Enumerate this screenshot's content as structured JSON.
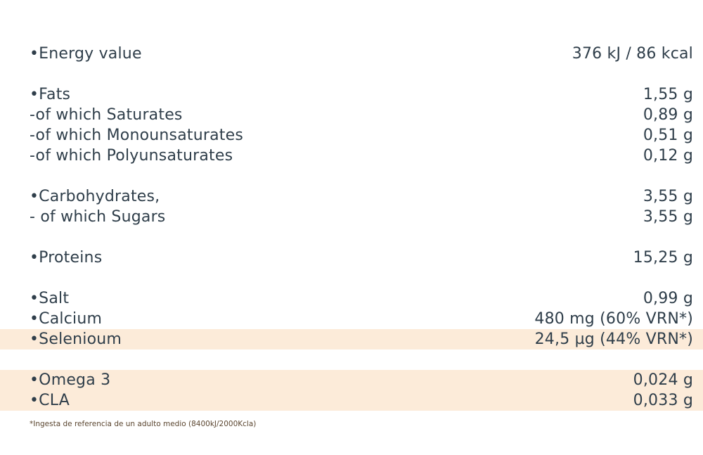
{
  "table": {
    "groups": [
      {
        "rows": [
          {
            "label": "•Energy value",
            "value": "376 kJ / 86 kcal"
          }
        ]
      },
      {
        "rows": [
          {
            "label": "•Fats",
            "value": "1,55 g"
          },
          {
            "label": "-of which Saturates",
            "value": "0,89 g"
          },
          {
            "label": "-of which Monounsaturates",
            "value": "0,51 g"
          },
          {
            "label": "-of which Polyunsaturates",
            "value": "0,12 g"
          }
        ]
      },
      {
        "rows": [
          {
            "label": "•Carbohydrates,",
            "value": "3,55 g"
          },
          {
            "label": "- of which Sugars",
            "value": "3,55 g"
          }
        ]
      },
      {
        "rows": [
          {
            "label": "•Proteins",
            "value": "15,25 g"
          }
        ]
      },
      {
        "rows": [
          {
            "label": "•Salt",
            "value": "0,99 g"
          },
          {
            "label": "•Calcium",
            "value": "480 mg (60% VRN*)"
          },
          {
            "label": "•Selenioum",
            "value": "24,5 µg (44% VRN*)",
            "highlighted": true
          }
        ]
      },
      {
        "rows": [
          {
            "label": "•Omega 3",
            "value": "0,024 g",
            "highlighted": true
          },
          {
            "label": "•CLA",
            "value": "0,033 g",
            "highlighted": true
          }
        ]
      }
    ]
  },
  "footnote": "*Ingesta de referencia de un adulto medio (8400kJ/2000Kcla)"
}
